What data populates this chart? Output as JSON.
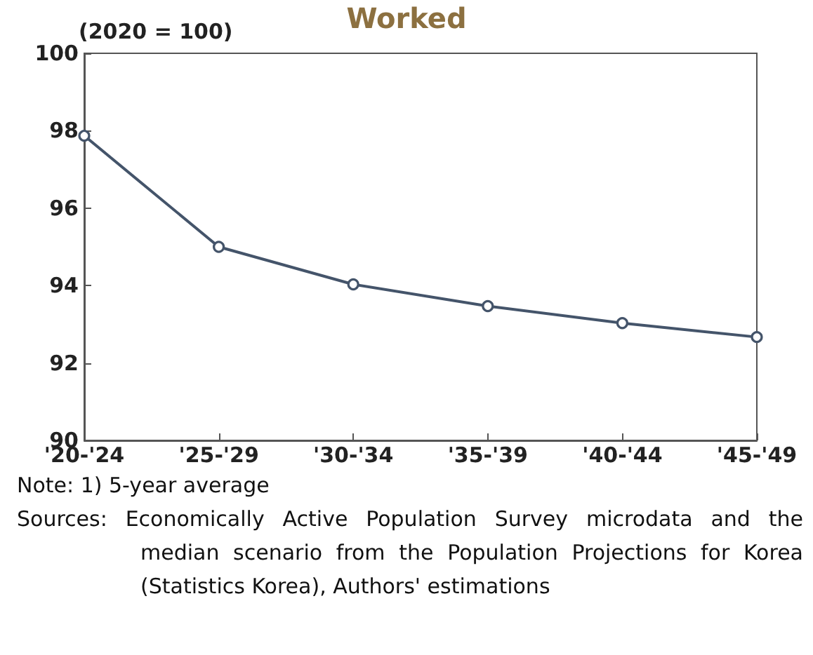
{
  "chart_data": {
    "type": "line",
    "title": "Worked",
    "ylabel": "(2020 = 100)",
    "categories": [
      "'20-'24",
      "'25-'29",
      "'30-'34",
      "'35-'39",
      "'40-'44",
      "'45-'49"
    ],
    "series": [
      {
        "color": "#44546a",
        "values": [
          97.87,
          95.0,
          94.03,
          93.47,
          93.03,
          92.67
        ]
      }
    ],
    "ylim": [
      90,
      100
    ],
    "yticks": [
      90,
      92,
      94,
      96,
      98,
      100
    ],
    "grid": false,
    "marker": "circle",
    "line_style": "solid",
    "annotations": [
      "Note: 1) 5-year average",
      "Sources: Economically Active Population Survey microdata and the median scenario from the Population Projections for Korea (Statistics Korea), Authors' estimations"
    ]
  }
}
